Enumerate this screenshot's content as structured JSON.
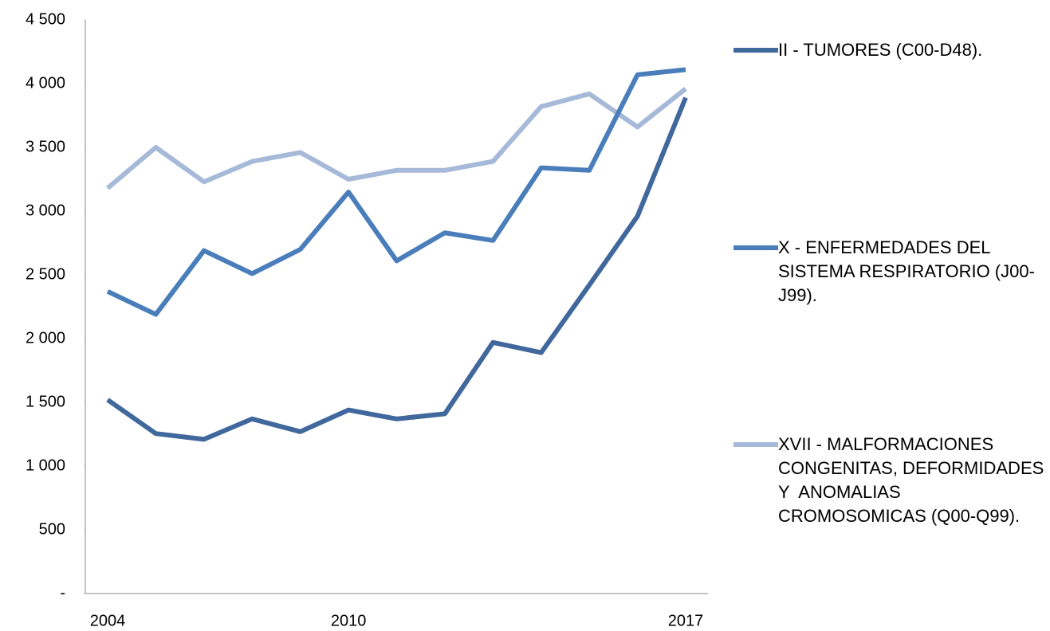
{
  "chart_data": {
    "type": "line",
    "categories": [
      "2004",
      null,
      null,
      null,
      null,
      "2010",
      null,
      null,
      null,
      null,
      null,
      null,
      "2017"
    ],
    "series": [
      {
        "name": "II - TUMORES (C00-D48).",
        "color": "#41689c",
        "values": [
          1520,
          1255,
          1210,
          1370,
          1270,
          1440,
          1370,
          1410,
          1970,
          1890,
          2420,
          2960,
          3890
        ]
      },
      {
        "name": "X - ENFERMEDADES DEL SISTEMA RESPIRATORIO (J00-J99).",
        "color": "#4a7ebb",
        "values": [
          2370,
          2190,
          2690,
          2510,
          2700,
          3150,
          2610,
          2830,
          2770,
          3340,
          3320,
          4070,
          4110
        ]
      },
      {
        "name": "XVII - MALFORMACIONES CONGENITAS, DEFORMIDADES Y  ANOMALIAS CROMOSOMICAS (Q00-Q99).",
        "color": "#a7b9d8",
        "values": [
          3180,
          3500,
          3230,
          3390,
          3460,
          3250,
          3320,
          3320,
          3390,
          3820,
          3920,
          3660,
          3960
        ]
      }
    ],
    "ylim": [
      0,
      4500
    ],
    "yticks": [
      {
        "value": 0,
        "label": "-"
      },
      500,
      {
        "value": 1000,
        "label": "1 000"
      },
      {
        "value": 1500,
        "label": "1 500"
      },
      {
        "value": 2000,
        "label": "2 000"
      },
      {
        "value": 2500,
        "label": "2 500"
      },
      {
        "value": 3000,
        "label": "3 000"
      },
      {
        "value": 3500,
        "label": "3 500"
      },
      {
        "value": 4000,
        "label": "4 000"
      },
      {
        "value": 4500,
        "label": "4 500"
      }
    ],
    "legend": "right"
  }
}
